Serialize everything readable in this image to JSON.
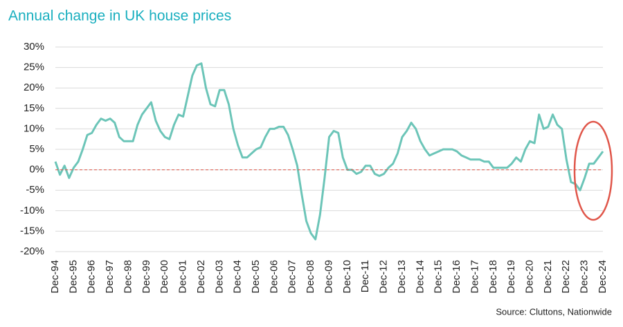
{
  "chart_data": {
    "type": "line",
    "title": "Annual change in UK house prices",
    "source": "Source: Cluttons, Nationwide",
    "categories": [
      "Dec-94",
      null,
      null,
      null,
      "Dec-95",
      null,
      null,
      null,
      "Dec-96",
      null,
      null,
      null,
      "Dec-97",
      null,
      null,
      null,
      "Dec-98",
      null,
      null,
      null,
      "Dec-99",
      null,
      null,
      null,
      "Dec-00",
      null,
      null,
      null,
      "Dec-01",
      null,
      null,
      null,
      "Dec-02",
      null,
      null,
      null,
      "Dec-03",
      null,
      null,
      null,
      "Dec-04",
      null,
      null,
      null,
      "Dec-05",
      null,
      null,
      null,
      "Dec-06",
      null,
      null,
      null,
      "Dec-07",
      null,
      null,
      null,
      "Dec-08",
      null,
      null,
      null,
      "Dec-09",
      null,
      null,
      null,
      "Dec-10",
      null,
      null,
      null,
      "Dec-11",
      null,
      null,
      null,
      "Dec-12",
      null,
      null,
      null,
      "Dec-13",
      null,
      null,
      null,
      "Dec-14",
      null,
      null,
      null,
      "Dec-15",
      null,
      null,
      null,
      "Dec-16",
      null,
      null,
      null,
      "Dec-17",
      null,
      null,
      null,
      "Dec-18",
      null,
      null,
      null,
      "Dec-19",
      null,
      null,
      null,
      "Dec-20",
      null,
      null,
      null,
      "Dec-21",
      null,
      null,
      null,
      "Dec-22",
      null,
      null,
      null,
      "Dec-23",
      null,
      null,
      null,
      "Dec-24"
    ],
    "series": [
      {
        "name": "Annual change",
        "color": "#6cc5b8",
        "values": [
          2,
          -1.2,
          1,
          -2,
          0.5,
          2,
          5,
          8.5,
          9,
          11,
          12.5,
          12,
          12.5,
          11.5,
          8,
          7,
          7,
          7,
          11,
          13.5,
          15,
          16.5,
          12,
          9.5,
          8,
          7.5,
          11,
          13.5,
          13,
          18,
          23,
          25.5,
          26,
          20,
          16,
          15.5,
          19.5,
          19.5,
          16,
          10,
          6,
          3,
          3,
          4,
          5,
          5.5,
          8,
          10,
          10,
          10.5,
          10.5,
          8.5,
          5,
          1,
          -6,
          -12.5,
          -15.5,
          -17,
          -11,
          -2,
          8,
          9.5,
          9,
          3,
          0,
          0,
          -1,
          -0.5,
          1,
          1,
          -1,
          -1.5,
          -1,
          0.5,
          1.5,
          4,
          8,
          9.5,
          11.5,
          10,
          7,
          5,
          3.5,
          4,
          4.5,
          5,
          5,
          5,
          4.5,
          3.5,
          3,
          2.5,
          2.5,
          2.5,
          2,
          2,
          0.5,
          0.5,
          0.5,
          0.5,
          1.5,
          3,
          2,
          5,
          7,
          6.5,
          13.5,
          10,
          10.5,
          13.5,
          11,
          10,
          2.5,
          -3,
          -3.5,
          -5,
          -2,
          1.5,
          1.5,
          3,
          4.5
        ]
      }
    ],
    "ylim": [
      -20,
      30
    ],
    "yticks": [
      {
        "value": -20,
        "label": "-20%"
      },
      {
        "value": -15,
        "label": "-15%"
      },
      {
        "value": -10,
        "label": "-10%"
      },
      {
        "value": -5,
        "label": "-5%"
      },
      {
        "value": 0,
        "label": "0%"
      },
      {
        "value": 5,
        "label": "5%"
      },
      {
        "value": 10,
        "label": "10%"
      },
      {
        "value": 15,
        "label": "15%"
      },
      {
        "value": 20,
        "label": "20%"
      },
      {
        "value": 25,
        "label": "25%"
      },
      {
        "value": 30,
        "label": "30%"
      }
    ],
    "grid": true,
    "reference_line": {
      "value": 0,
      "color": "#e0564a"
    }
  }
}
